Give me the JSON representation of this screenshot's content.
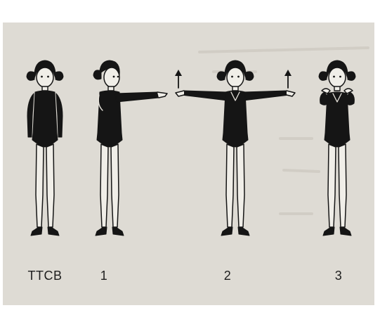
{
  "figures": [
    {
      "label": "TTCB"
    },
    {
      "label": "1"
    },
    {
      "label": "2"
    },
    {
      "label": "3"
    }
  ]
}
